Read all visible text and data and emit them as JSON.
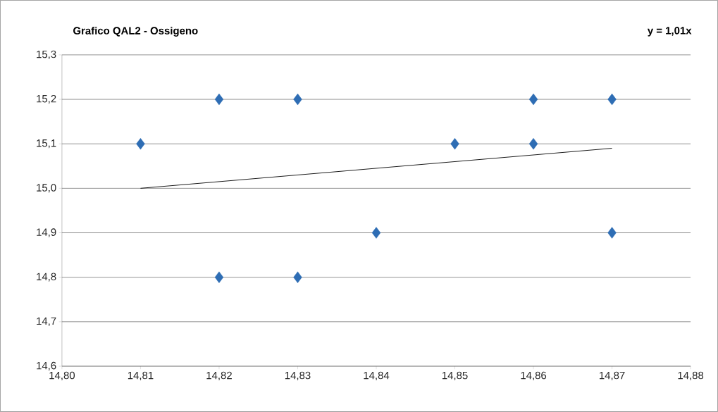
{
  "chart_data": {
    "type": "scatter",
    "title": "Grafico QAL2 - Ossigeno",
    "annotations": [
      "y = 1,01x"
    ],
    "xlim": [
      14.8,
      14.88
    ],
    "ylim": [
      14.6,
      15.3
    ],
    "xticks": [
      {
        "value": 14.8,
        "label": "14,80"
      },
      {
        "value": 14.81,
        "label": "14,81"
      },
      {
        "value": 14.82,
        "label": "14,82"
      },
      {
        "value": 14.83,
        "label": "14,83"
      },
      {
        "value": 14.84,
        "label": "14,84"
      },
      {
        "value": 14.85,
        "label": "14,85"
      },
      {
        "value": 14.86,
        "label": "14,86"
      },
      {
        "value": 14.87,
        "label": "14,87"
      },
      {
        "value": 14.88,
        "label": "14,88"
      }
    ],
    "yticks": [
      {
        "value": 14.6,
        "label": "14,6"
      },
      {
        "value": 14.7,
        "label": "14,7"
      },
      {
        "value": 14.8,
        "label": "14,8"
      },
      {
        "value": 14.9,
        "label": "14,9"
      },
      {
        "value": 15.0,
        "label": "15,0"
      },
      {
        "value": 15.1,
        "label": "15,1"
      },
      {
        "value": 15.2,
        "label": "15,2"
      },
      {
        "value": 15.3,
        "label": "15,3"
      }
    ],
    "grid": "y",
    "marker": "diamond",
    "series": [
      {
        "color": "#2e6db4",
        "x": [
          14.81,
          14.82,
          14.82,
          14.83,
          14.83,
          14.84,
          14.85,
          14.86,
          14.86,
          14.87,
          14.87
        ],
        "values": [
          15.1,
          15.2,
          14.8,
          15.2,
          14.8,
          14.9,
          15.1,
          15.2,
          15.1,
          15.2,
          14.9
        ]
      },
      {
        "type": "line",
        "color": "#000000",
        "marker": "none",
        "x": [
          14.81,
          14.87
        ],
        "values": [
          15.0,
          15.09
        ]
      }
    ]
  }
}
